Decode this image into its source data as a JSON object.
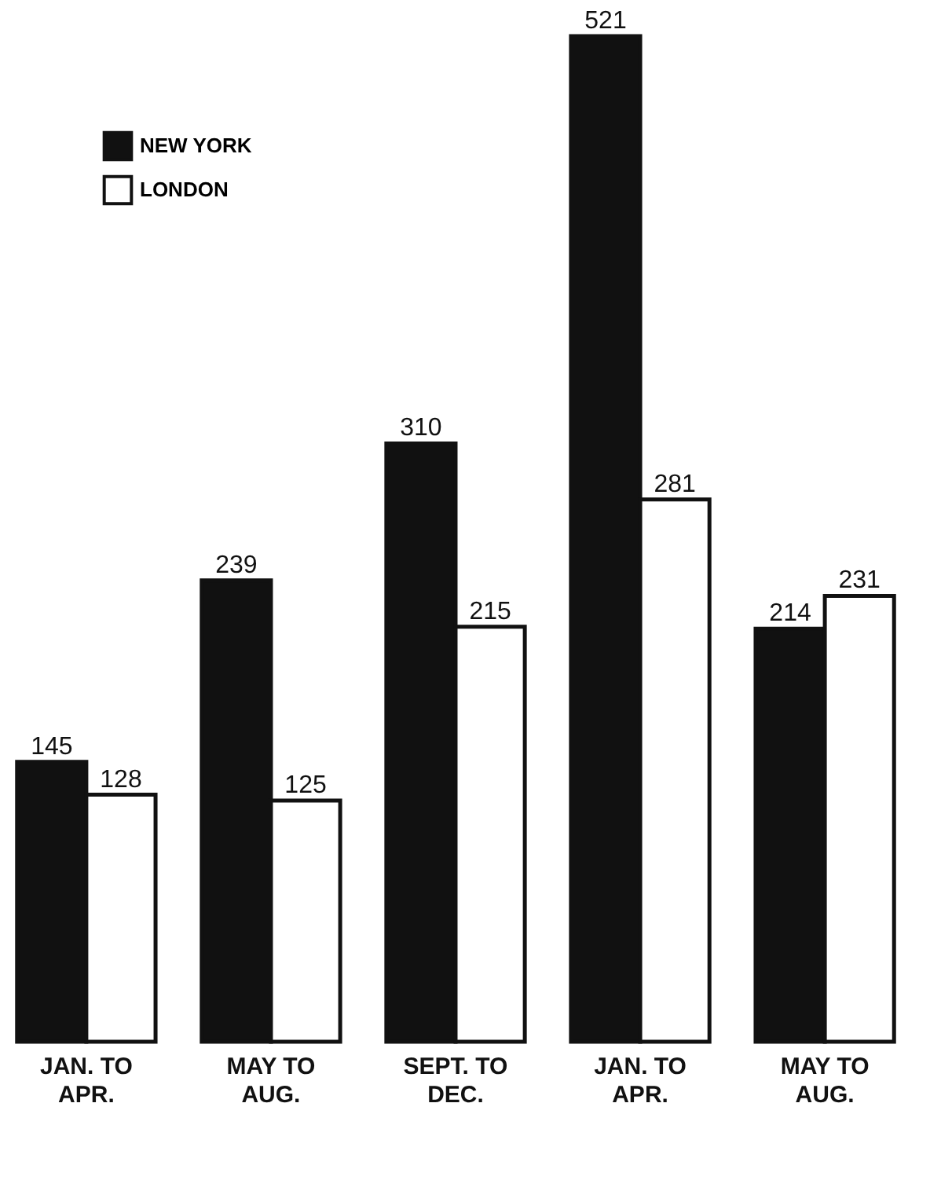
{
  "chart_data": {
    "type": "bar",
    "categories": [
      "JAN. TO\nAPR.",
      "MAY TO\nAUG.",
      "SEPT. TO\nDEC.",
      "JAN. TO\nAPR.",
      "MAY TO\nAUG."
    ],
    "series": [
      {
        "name": "NEW YORK",
        "color": "#111111",
        "values": [
          145,
          239,
          310,
          521,
          214
        ]
      },
      {
        "name": "LONDON",
        "color": "#ffffff",
        "values": [
          128,
          125,
          215,
          281,
          231
        ]
      }
    ],
    "data_labels": true,
    "legend": "top left",
    "tick_labels": "x",
    "grid": false
  }
}
